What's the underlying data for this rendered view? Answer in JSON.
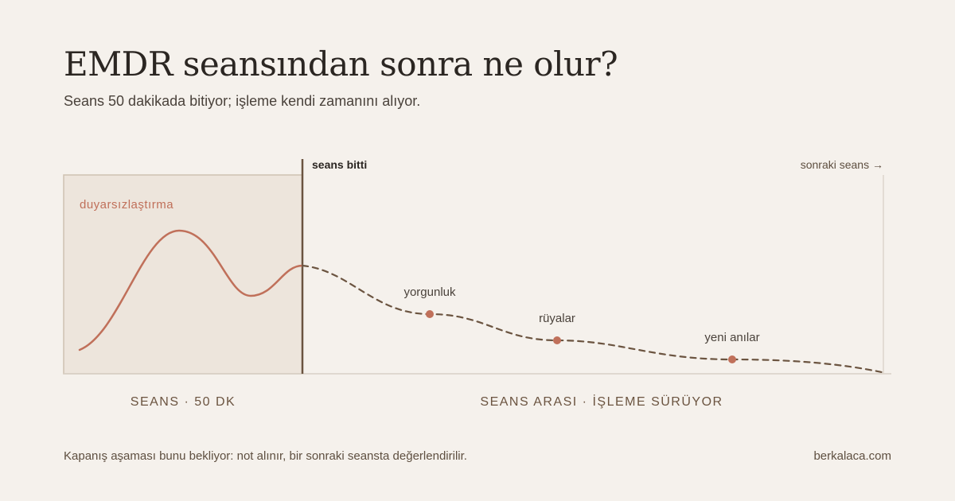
{
  "header": {
    "title": "EMDR seansından sonra ne olur?",
    "subtitle": "Seans 50 dakikada bitiyor; işleme kendi zamanını alıyor."
  },
  "diagram": {
    "session_label": "duyarsızlaştırma",
    "session_end_label": "seans bitti",
    "next_session_label": "sonraki seans →",
    "markers": [
      {
        "label": "yorgunluk"
      },
      {
        "label": "rüyalar"
      },
      {
        "label": "yeni anılar"
      }
    ],
    "phase_session": "SEANS · 50 DK",
    "phase_between": "SEANS ARASI · İŞLEME SÜRÜYOR",
    "colors": {
      "accent": "#c0705a",
      "dark": "#6b5440",
      "session_fill": "#ede5dc",
      "background": "#f5f1ec"
    }
  },
  "footer": {
    "note": "Kapanış aşaması bunu bekliyor: not alınır, bir sonraki seansta değerlendirilir.",
    "site": "berkalaca.com"
  }
}
